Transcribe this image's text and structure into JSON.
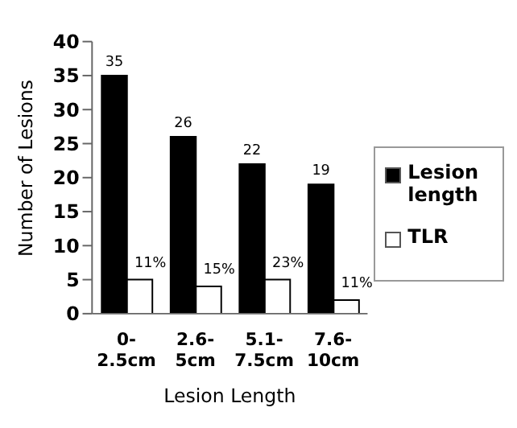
{
  "chart_data": {
    "type": "bar",
    "xlabel": "Lesion Length",
    "ylabel": "Number of Lesions",
    "categories": [
      "0-2.5cm",
      "2.6-5cm",
      "5.1-7.5cm",
      "7.6-10cm"
    ],
    "series": [
      {
        "name": "Lesion length",
        "color": "#000000",
        "values": [
          35,
          26,
          22,
          19
        ],
        "value_labels": [
          "35",
          "26",
          "22",
          "19"
        ]
      },
      {
        "name": "TLR",
        "color": "#ffffff",
        "values": [
          5,
          4,
          5,
          2
        ]
      }
    ],
    "annotations": [
      {
        "text": "11%",
        "x": "0-2.5cm",
        "y": 5
      },
      {
        "text": "15%",
        "x": "2.6-5cm",
        "y": 4
      },
      {
        "text": "23%",
        "x": "5.1-7.5cm",
        "y": 5
      },
      {
        "text": "11%",
        "x": "7.6-10cm",
        "y": 2
      }
    ],
    "ylim": [
      0,
      40
    ],
    "yticks": [
      0,
      5,
      10,
      15,
      20,
      25,
      30,
      35,
      40
    ],
    "grid": false,
    "legend": "right"
  }
}
